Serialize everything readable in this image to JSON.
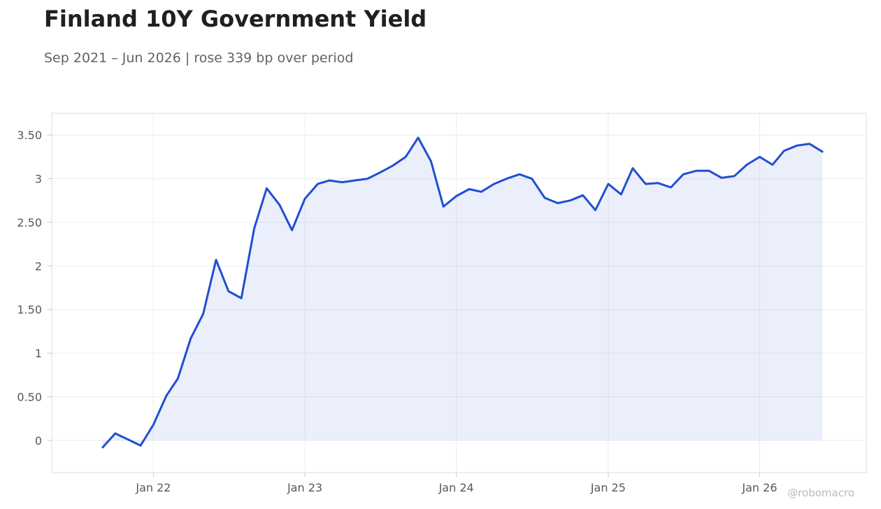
{
  "header": {
    "title": "Finland 10Y Government Yield",
    "subtitle": "Sep 2021 – Jun 2026 | rose 339 bp over period"
  },
  "watermark": "@robomacro",
  "colors": {
    "line": "#1f4fd1",
    "fill": "#1f4fd1",
    "grid": "#ececec",
    "frame": "#dcdcdc"
  },
  "chart_data": {
    "type": "area",
    "title": "Finland 10Y Government Yield",
    "xlabel": "",
    "ylabel": "",
    "grid": true,
    "legend": "none",
    "xlim": [
      "2021-05-01",
      "2026-09-15"
    ],
    "ylim": [
      -0.37,
      3.75
    ],
    "x_ticks": [
      {
        "date": "2022-01-01",
        "label": "Jan 22"
      },
      {
        "date": "2023-01-01",
        "label": "Jan 23"
      },
      {
        "date": "2024-01-01",
        "label": "Jan 24"
      },
      {
        "date": "2025-01-01",
        "label": "Jan 25"
      },
      {
        "date": "2026-01-01",
        "label": "Jan 26"
      }
    ],
    "y_ticks": [
      {
        "value": 0,
        "label": "0"
      },
      {
        "value": 0.5,
        "label": "0.50"
      },
      {
        "value": 1,
        "label": "1"
      },
      {
        "value": 1.5,
        "label": "1.50"
      },
      {
        "value": 2,
        "label": "2"
      },
      {
        "value": 2.5,
        "label": "2.50"
      },
      {
        "value": 3,
        "label": "3"
      },
      {
        "value": 3.5,
        "label": "3.50"
      }
    ],
    "series": [
      {
        "x": [
          "2021-09-01",
          "2021-10-01",
          "2021-11-01",
          "2021-12-01",
          "2022-01-01",
          "2022-02-01",
          "2022-03-01",
          "2022-04-01",
          "2022-05-01",
          "2022-06-01",
          "2022-07-01",
          "2022-08-01",
          "2022-09-01",
          "2022-10-01",
          "2022-11-01",
          "2022-12-01",
          "2023-01-01",
          "2023-02-01",
          "2023-03-01",
          "2023-04-01",
          "2023-05-01",
          "2023-06-01",
          "2023-07-01",
          "2023-08-01",
          "2023-09-01",
          "2023-10-01",
          "2023-11-01",
          "2023-12-01",
          "2024-01-01",
          "2024-02-01",
          "2024-03-01",
          "2024-04-01",
          "2024-05-01",
          "2024-06-01",
          "2024-07-01",
          "2024-08-01",
          "2024-09-01",
          "2024-10-01",
          "2024-11-01",
          "2024-12-01",
          "2025-01-01",
          "2025-02-01",
          "2025-03-01",
          "2025-04-01",
          "2025-05-01",
          "2025-06-01",
          "2025-07-01",
          "2025-08-01",
          "2025-09-01",
          "2025-10-01",
          "2025-11-01",
          "2025-12-01",
          "2026-01-01",
          "2026-02-01",
          "2026-03-01",
          "2026-04-01",
          "2026-05-01",
          "2026-06-01"
        ],
        "values": [
          -0.08,
          0.08,
          0.01,
          -0.06,
          0.18,
          0.51,
          0.71,
          1.17,
          1.45,
          2.07,
          1.71,
          1.63,
          2.43,
          2.89,
          2.7,
          2.41,
          2.77,
          2.94,
          2.98,
          2.96,
          2.98,
          3.0,
          3.07,
          3.15,
          3.25,
          3.47,
          3.2,
          2.68,
          2.8,
          2.88,
          2.85,
          2.94,
          3.0,
          3.05,
          3.0,
          2.78,
          2.72,
          2.75,
          2.81,
          2.64,
          2.94,
          2.82,
          3.12,
          2.94,
          2.95,
          2.9,
          3.05,
          3.09,
          3.09,
          3.01,
          3.03,
          3.16,
          3.25,
          3.16,
          3.32,
          3.38,
          3.4,
          3.31
        ]
      }
    ]
  }
}
